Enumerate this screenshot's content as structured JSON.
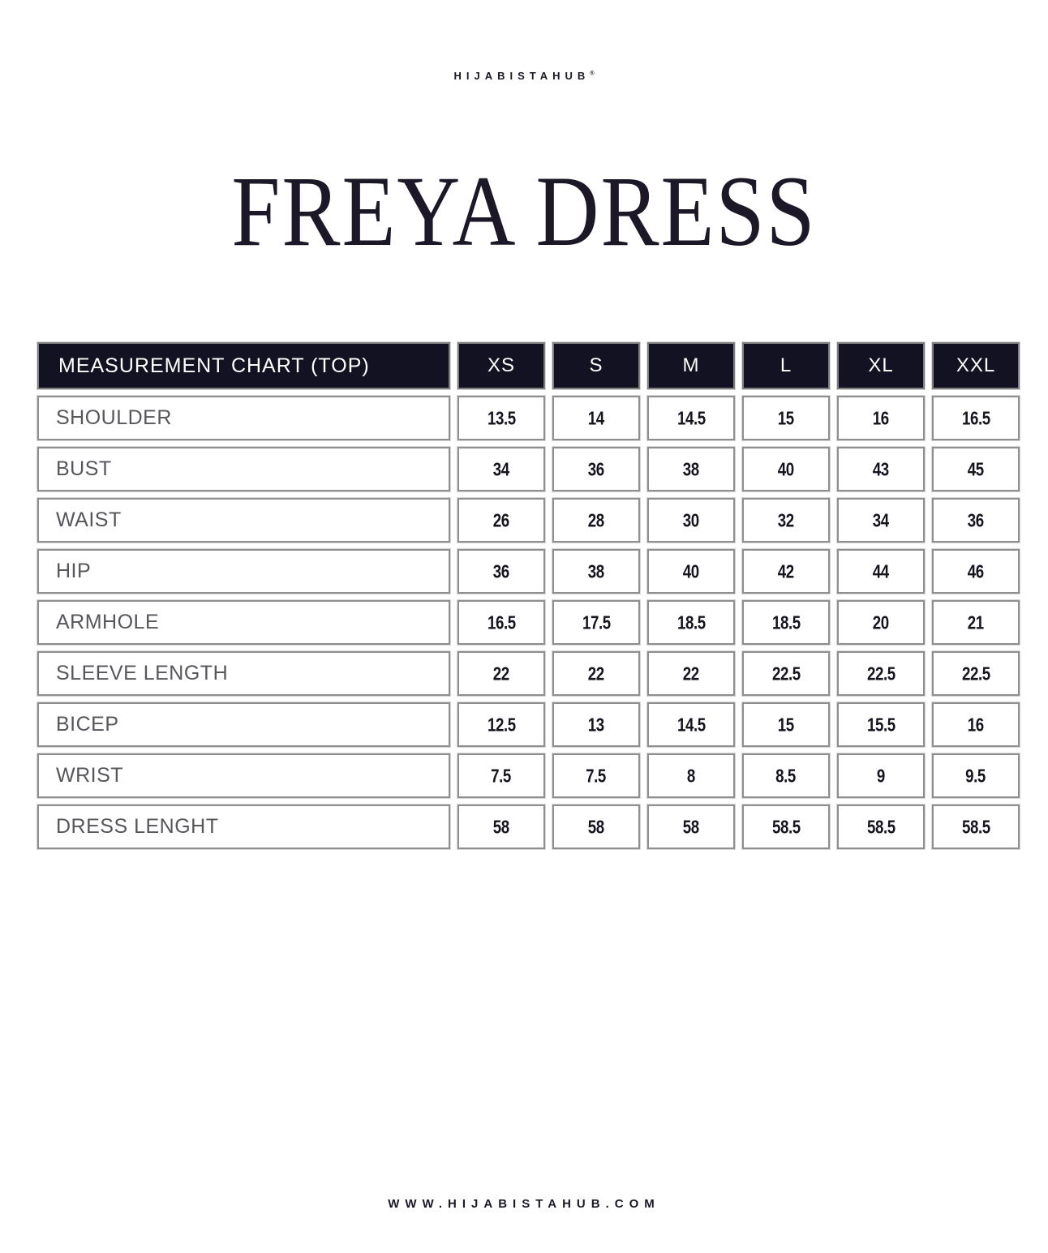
{
  "brand": {
    "name_regular": "HIJABISTA",
    "name_bold": "HUB",
    "registered": "®"
  },
  "title": "FREYA DRESS",
  "table": {
    "header": "MEASUREMENT CHART (TOP)",
    "sizes": [
      "XS",
      "S",
      "M",
      "L",
      "XL",
      "XXL"
    ],
    "rows": [
      {
        "label": "SHOULDER",
        "values": [
          "13.5",
          "14",
          "14.5",
          "15",
          "16",
          "16.5"
        ]
      },
      {
        "label": "BUST",
        "values": [
          "34",
          "36",
          "38",
          "40",
          "43",
          "45"
        ]
      },
      {
        "label": "WAIST",
        "values": [
          "26",
          "28",
          "30",
          "32",
          "34",
          "36"
        ]
      },
      {
        "label": "HIP",
        "values": [
          "36",
          "38",
          "40",
          "42",
          "44",
          "46"
        ]
      },
      {
        "label": "ARMHOLE",
        "values": [
          "16.5",
          "17.5",
          "18.5",
          "18.5",
          "20",
          "21"
        ]
      },
      {
        "label": "SLEEVE LENGTH",
        "values": [
          "22",
          "22",
          "22",
          "22.5",
          "22.5",
          "22.5"
        ]
      },
      {
        "label": "BICEP",
        "values": [
          "12.5",
          "13",
          "14.5",
          "15",
          "15.5",
          "16"
        ]
      },
      {
        "label": "WRIST",
        "values": [
          "7.5",
          "7.5",
          "8",
          "8.5",
          "9",
          "9.5"
        ]
      },
      {
        "label": "DRESS LENGHT",
        "values": [
          "58",
          "58",
          "58",
          "58.5",
          "58.5",
          "58.5"
        ]
      }
    ]
  },
  "footer": {
    "website": "WWW.HIJABISTAHUB.COM"
  },
  "colors": {
    "navy": "#131222",
    "border_gray": "#8f8f8f",
    "label_text": "#56565c",
    "value_text": "#15151f",
    "title_text": "#1d1828"
  },
  "chart_data": {
    "type": "table",
    "title": "MEASUREMENT CHART (TOP)",
    "columns": [
      "MEASUREMENT",
      "XS",
      "S",
      "M",
      "L",
      "XL",
      "XXL"
    ],
    "rows": [
      [
        "SHOULDER",
        13.5,
        14,
        14.5,
        15,
        16,
        16.5
      ],
      [
        "BUST",
        34,
        36,
        38,
        40,
        43,
        45
      ],
      [
        "WAIST",
        26,
        28,
        30,
        32,
        34,
        36
      ],
      [
        "HIP",
        36,
        38,
        40,
        42,
        44,
        46
      ],
      [
        "ARMHOLE",
        16.5,
        17.5,
        18.5,
        18.5,
        20,
        21
      ],
      [
        "SLEEVE LENGTH",
        22,
        22,
        22,
        22.5,
        22.5,
        22.5
      ],
      [
        "BICEP",
        12.5,
        13,
        14.5,
        15,
        15.5,
        16
      ],
      [
        "WRIST",
        7.5,
        7.5,
        8,
        8.5,
        9,
        9.5
      ],
      [
        "DRESS LENGHT",
        58,
        58,
        58,
        58.5,
        58.5,
        58.5
      ]
    ]
  }
}
